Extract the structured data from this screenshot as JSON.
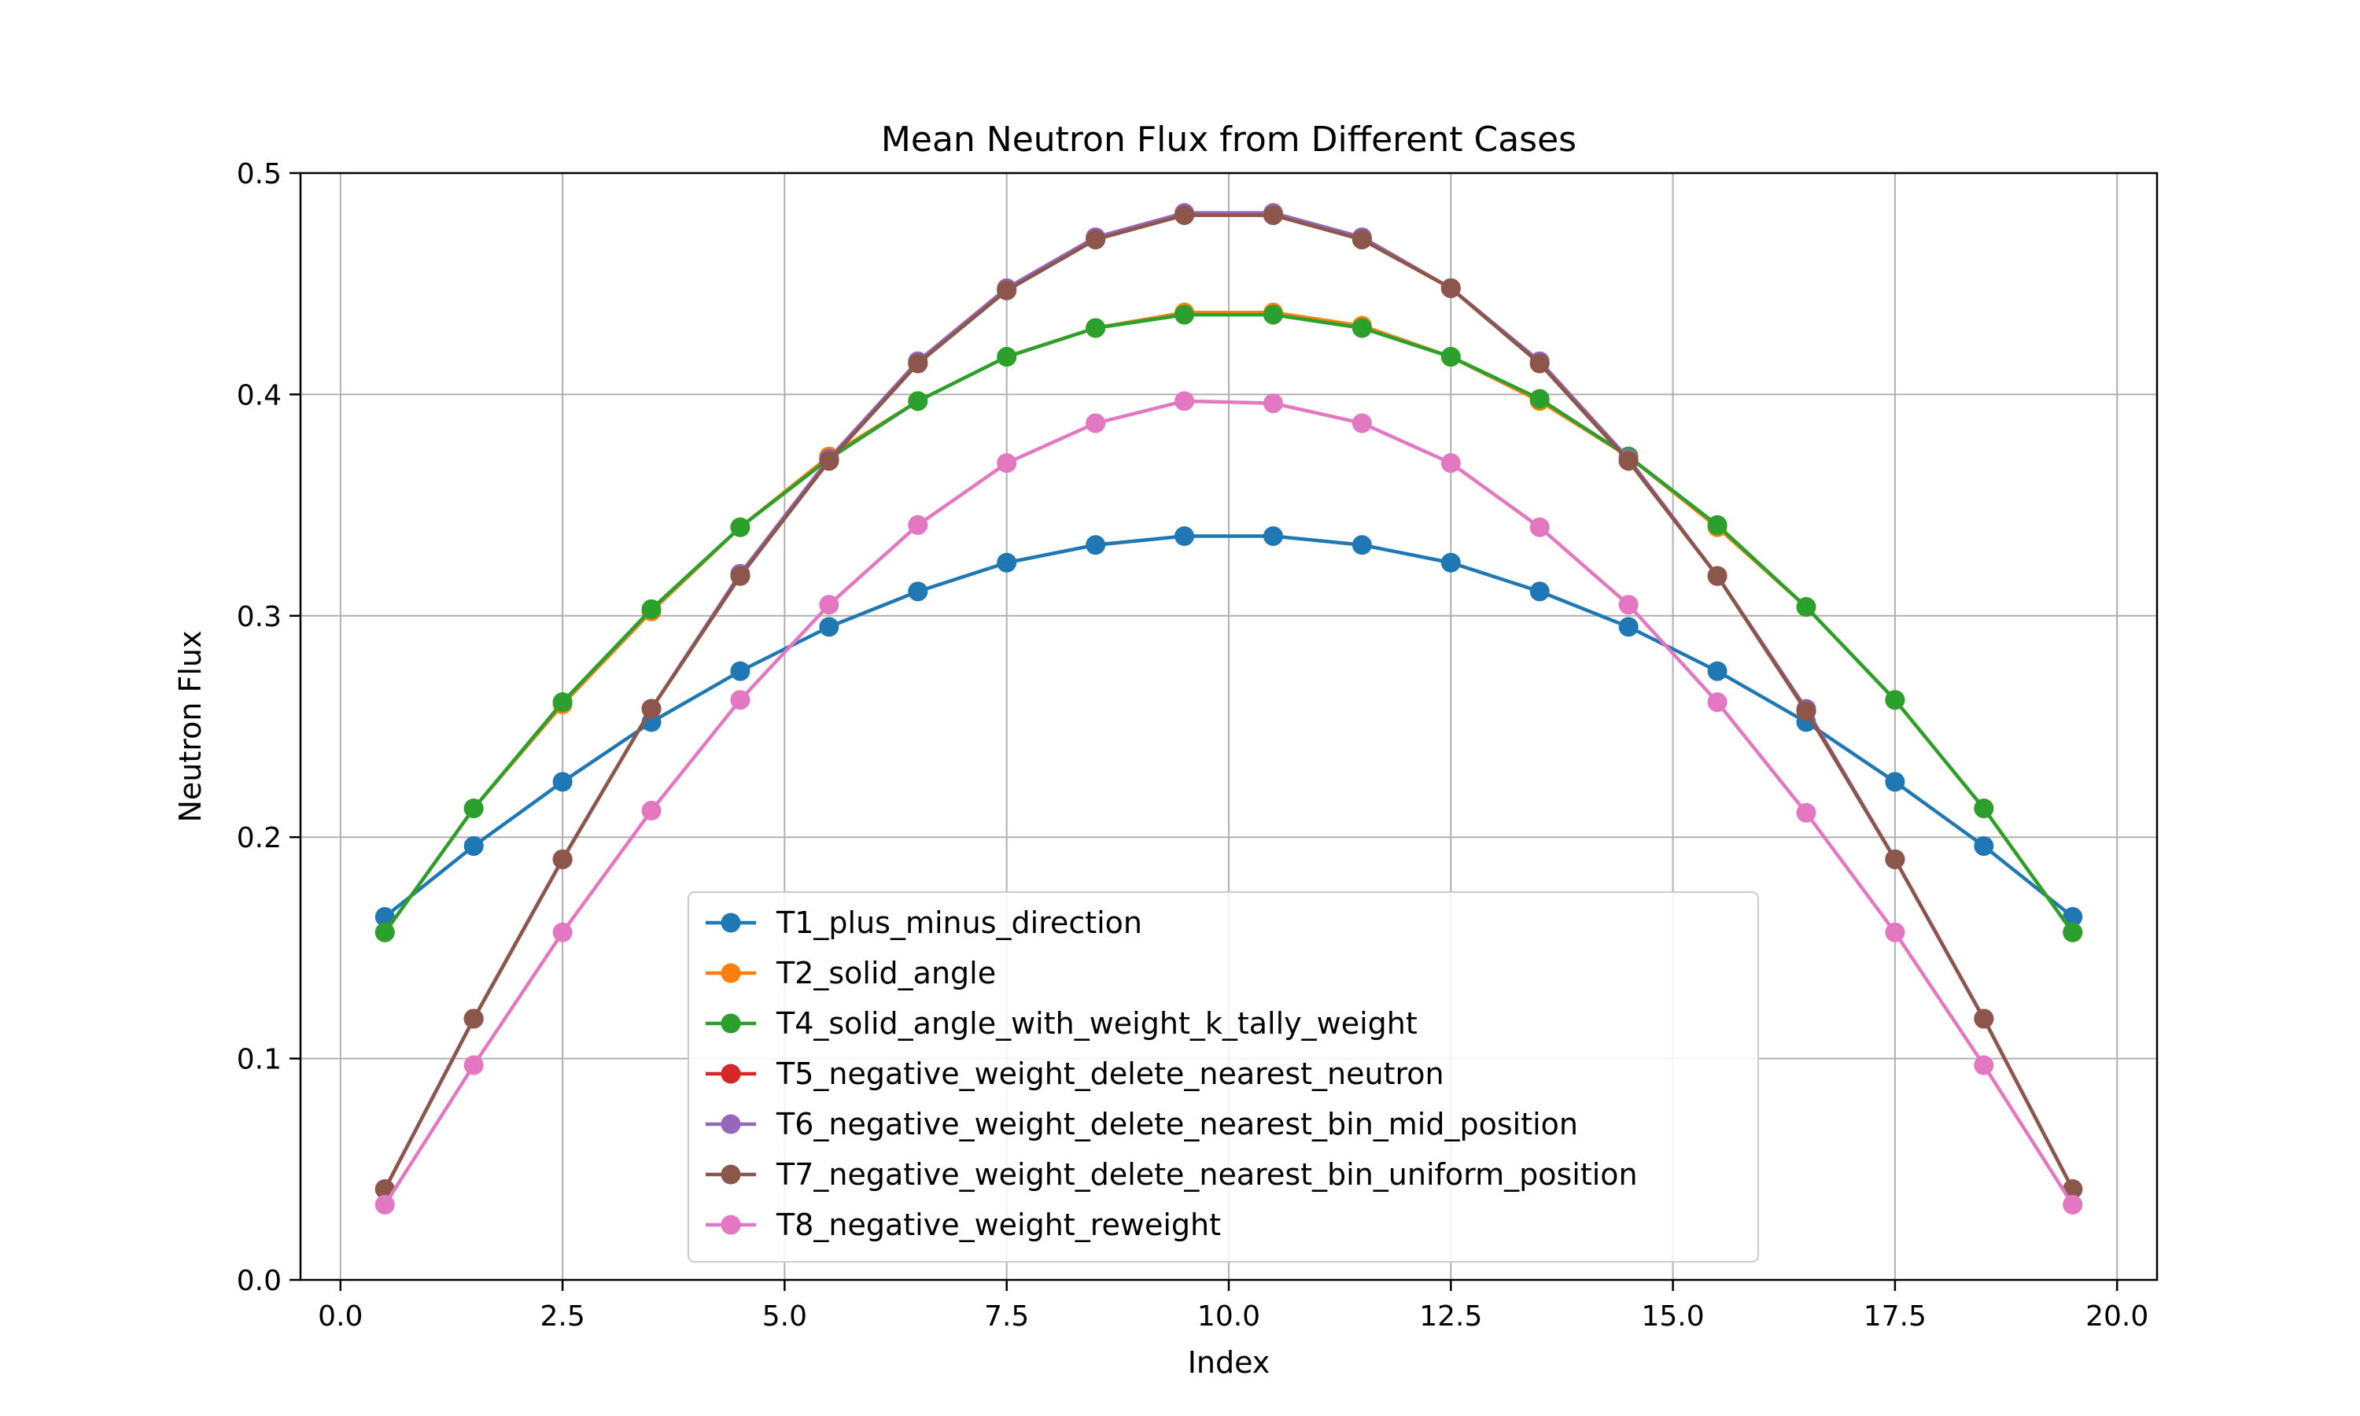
{
  "chart_data": {
    "type": "line",
    "title": "Mean Neutron Flux from Different Cases",
    "xlabel": "Index",
    "ylabel": "Neutron Flux",
    "xlim": [
      -0.45,
      20.45
    ],
    "ylim": [
      0.0,
      0.5
    ],
    "x_ticks": [
      "0.0",
      "2.5",
      "5.0",
      "7.5",
      "10.0",
      "12.5",
      "15.0",
      "17.5",
      "20.0"
    ],
    "y_ticks": [
      "0.0",
      "0.1",
      "0.2",
      "0.3",
      "0.4",
      "0.5"
    ],
    "grid": true,
    "legend_position": "lower-center",
    "x": [
      0.5,
      1.5,
      2.5,
      3.5,
      4.5,
      5.5,
      6.5,
      7.5,
      8.5,
      9.5,
      10.5,
      11.5,
      12.5,
      13.5,
      14.5,
      15.5,
      16.5,
      17.5,
      18.5,
      19.5
    ],
    "series": [
      {
        "name": "T1_plus_minus_direction",
        "color": "#1f77b4",
        "values": [
          0.164,
          0.196,
          0.225,
          0.252,
          0.275,
          0.295,
          0.311,
          0.324,
          0.332,
          0.336,
          0.336,
          0.332,
          0.324,
          0.311,
          0.295,
          0.275,
          0.252,
          0.225,
          0.196,
          0.164
        ]
      },
      {
        "name": "T2_solid_angle",
        "color": "#ff7f0e",
        "values": [
          0.157,
          0.213,
          0.26,
          0.302,
          0.34,
          0.372,
          0.397,
          0.417,
          0.43,
          0.437,
          0.437,
          0.431,
          0.417,
          0.397,
          0.372,
          0.34,
          0.304,
          0.262,
          0.213,
          0.157
        ]
      },
      {
        "name": "T4_solid_angle_with_weight_k_tally_weight",
        "color": "#2ca02c",
        "values": [
          0.157,
          0.213,
          0.261,
          0.303,
          0.34,
          0.371,
          0.397,
          0.417,
          0.43,
          0.436,
          0.436,
          0.43,
          0.417,
          0.398,
          0.372,
          0.341,
          0.304,
          0.262,
          0.213,
          0.157
        ]
      },
      {
        "name": "T5_negative_weight_delete_nearest_neutron",
        "color": "#d62728",
        "values": [
          0.041,
          0.118,
          0.19,
          0.258,
          0.318,
          0.37,
          0.414,
          0.447,
          0.47,
          0.481,
          0.481,
          0.47,
          0.448,
          0.414,
          0.37,
          0.318,
          0.257,
          0.19,
          0.118,
          0.041
        ]
      },
      {
        "name": "T6_negative_weight_delete_nearest_bin_mid_position",
        "color": "#9467bd",
        "values": [
          0.041,
          0.118,
          0.19,
          0.258,
          0.319,
          0.371,
          0.415,
          0.448,
          0.471,
          0.482,
          0.482,
          0.471,
          0.448,
          0.415,
          0.371,
          0.318,
          0.258,
          0.19,
          0.118,
          0.041
        ]
      },
      {
        "name": "T7_negative_weight_delete_nearest_bin_uniform_position",
        "color": "#8c564b",
        "values": [
          0.041,
          0.118,
          0.19,
          0.258,
          0.318,
          0.37,
          0.414,
          0.447,
          0.47,
          0.481,
          0.481,
          0.47,
          0.448,
          0.414,
          0.37,
          0.318,
          0.257,
          0.19,
          0.118,
          0.041
        ]
      },
      {
        "name": "T8_negative_weight_reweight",
        "color": "#e377c2",
        "values": [
          0.034,
          0.097,
          0.157,
          0.212,
          0.262,
          0.305,
          0.341,
          0.369,
          0.387,
          0.397,
          0.396,
          0.387,
          0.369,
          0.34,
          0.305,
          0.261,
          0.211,
          0.157,
          0.097,
          0.034
        ]
      }
    ]
  }
}
